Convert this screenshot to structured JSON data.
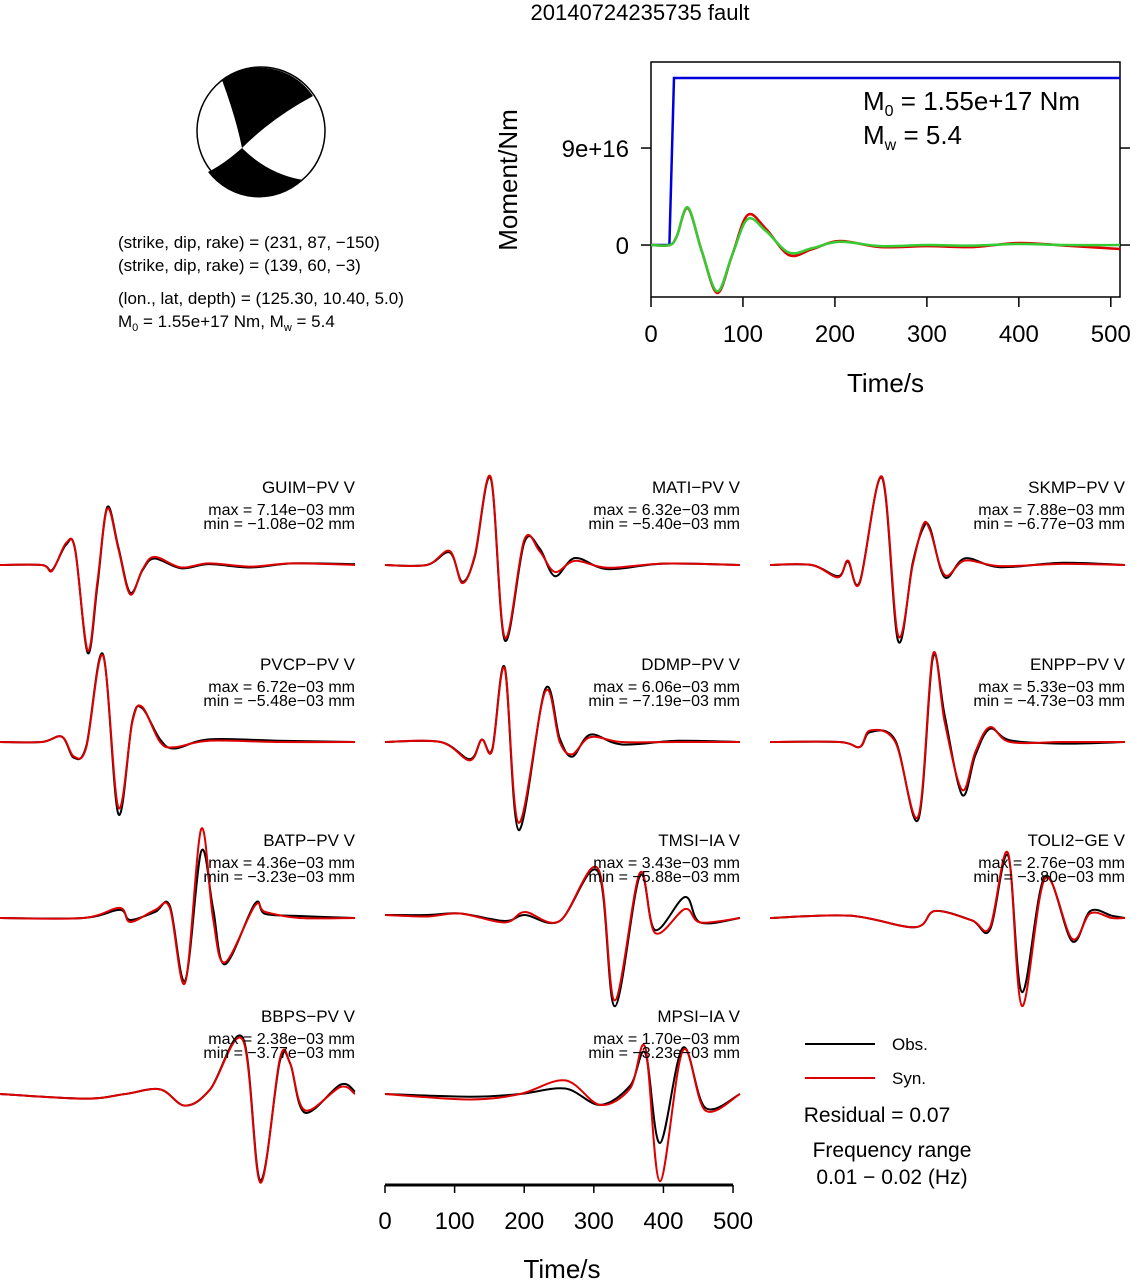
{
  "title": "20140724235735 fault",
  "mechanism": {
    "lines": [
      "(strike, dip, rake) = (231, 87, −150)",
      "(strike, dip, rake) = (139, 60, −3)",
      "(lon., lat, depth) = (125.30, 10.40, 5.0)"
    ],
    "moment": {
      "m0_symbol": "M",
      "m0_sub": "0",
      "m0_text": " = 1.55e+17 Nm, ",
      "mw_symbol": "M",
      "mw_sub": "w",
      "mw_text": " = 5.4"
    }
  },
  "chart_data": [
    {
      "type": "line",
      "ylabel": "Moment/Nm",
      "xlabel": "Time/s",
      "xlim": [
        0,
        510
      ],
      "ylim": [
        -4.82e+16,
        1.698e+17
      ],
      "xticks": [
        0,
        100,
        200,
        300,
        400,
        500
      ],
      "yticks": [
        0,
        {
          "value": 9e+16,
          "label": "9e+16"
        }
      ],
      "annotations": [
        {
          "symbol": "M",
          "sub": "0",
          "text": " = 1.55e+17 Nm"
        },
        {
          "symbol": "M",
          "sub": "w",
          "text": " = 5.4"
        }
      ],
      "series": [
        {
          "color": "#0000dd",
          "x": [
            0,
            20,
            25,
            510
          ],
          "values": [
            0,
            0,
            1.55e+17,
            1.55e+17
          ]
        },
        {
          "color": "#dd0000",
          "x": [
            0,
            20,
            28,
            40,
            55,
            72,
            88,
            105,
            125,
            150,
            175,
            205,
            250,
            300,
            350,
            400,
            450,
            510
          ],
          "values": [
            0,
            0,
            8000000000000000.0,
            3.43e+16,
            -5000000000000000.0,
            -4.45e+16,
            -1e+16,
            2.78e+16,
            1.5e+16,
            -9300000000000000.0,
            -4000000000000000.0,
            3700000000000000.0,
            -1900000000000000.0,
            -1000000000000000.0,
            -1900000000000000.0,
            1900000000000000.0,
            -500000000000000.0,
            -3700000000000000.0
          ]
        },
        {
          "color": "#33cc33",
          "x": [
            0,
            20,
            28,
            40,
            55,
            72,
            88,
            105,
            125,
            150,
            175,
            205,
            250,
            300,
            350,
            400,
            450,
            510
          ],
          "values": [
            0,
            0,
            8000000000000000.0,
            3.5e+16,
            -5000000000000000.0,
            -4.3e+16,
            -1e+16,
            2.4e+16,
            1.3e+16,
            -7000000000000000.0,
            -3000000000000000.0,
            3000000000000000.0,
            -1000000000000000.0,
            0,
            -500000000000000.0,
            1000000000000000.0,
            0,
            0
          ]
        }
      ]
    },
    {
      "type": "waveforms",
      "xlabel": "Time/s",
      "xlim": [
        0,
        510
      ],
      "xticks": [
        0,
        100,
        200,
        300,
        400,
        500
      ],
      "legend": {
        "obs": {
          "name": "Obs.",
          "color": "#000000"
        },
        "syn": {
          "name": "Syn.",
          "color": "#dd0000"
        }
      },
      "residual": "Residual = 0.07",
      "frequency_title": "Frequency range",
      "frequency_range": "0.01 − 0.02 (Hz)",
      "panels": [
        {
          "title": "GUIM−PV V",
          "max": {
            "value": 0.00714,
            "label": "max = 7.14e−03 mm"
          },
          "min": {
            "value": -0.0108,
            "label": "min = −1.08e−02 mm"
          },
          "x": [
            0,
            60,
            75,
            95,
            108,
            126,
            140,
            154,
            170,
            187,
            205,
            222,
            260,
            300,
            360,
            420,
            510
          ],
          "obs": [
            0,
            0,
            -0.0006,
            0.0025,
            0.0019,
            -0.0108,
            -0.0025,
            0.0071,
            0.0022,
            -0.0034,
            -0.0006,
            0.0008,
            -0.0004,
            0.0001,
            -0.0003,
            0.0002,
            0.0001
          ],
          "syn": [
            0,
            0,
            -0.0007,
            0.0027,
            0.0018,
            -0.0105,
            -0.002,
            0.0069,
            0.002,
            -0.0036,
            -0.0005,
            0.001,
            -0.0003,
            0.0002,
            -0.0002,
            0.0002,
            0
          ]
        },
        {
          "title": "MATI−PV V",
          "max": {
            "value": 0.00632,
            "label": "max = 6.32e−03 mm"
          },
          "min": {
            "value": -0.0054,
            "label": "min = −5.40e−03 mm"
          },
          "x": [
            0,
            60,
            93,
            111,
            129,
            152,
            172,
            200,
            222,
            244,
            273,
            320,
            400,
            510
          ],
          "obs": [
            0,
            0,
            0.0009,
            -0.0012,
            0.0006,
            0.0062,
            -0.0054,
            0.0016,
            0.0012,
            -0.0008,
            0.0005,
            -0.0003,
            0.0001,
            0
          ],
          "syn": [
            0,
            0,
            0.001,
            -0.0013,
            0.0007,
            0.0063,
            -0.0052,
            0.0018,
            0.001,
            -0.0005,
            0.0003,
            -0.0002,
            0.0001,
            0
          ]
        },
        {
          "title": "SKMP−PV V",
          "max": {
            "value": 0.00788,
            "label": "max = 7.88e−03 mm"
          },
          "min": {
            "value": -0.00677,
            "label": "min = −6.77e−03 mm"
          },
          "x": [
            0,
            60,
            98,
            112,
            129,
            161,
            184,
            205,
            220,
            230,
            251,
            280,
            330,
            420,
            510
          ],
          "obs": [
            0,
            0,
            -0.001,
            0.0003,
            -0.0015,
            0.0078,
            -0.0068,
            0.0002,
            0.0033,
            0.0033,
            -0.0011,
            0.0006,
            -0.0002,
            0.0002,
            0
          ],
          "syn": [
            0,
            0,
            -0.0011,
            0.0004,
            -0.0016,
            0.0079,
            -0.0063,
            0,
            0.0036,
            0.0031,
            -0.0009,
            0.0004,
            -0.0001,
            0.0001,
            0
          ]
        },
        {
          "title": "PVCP−PV V",
          "max": {
            "value": 0.00672,
            "label": "max = 6.72e−03 mm"
          },
          "min": {
            "value": -0.00548,
            "label": "min = −5.48e−03 mm"
          },
          "x": [
            0,
            60,
            89,
            106,
            124,
            148,
            170,
            190,
            204,
            230,
            251,
            300,
            400,
            510
          ],
          "obs": [
            0,
            0,
            0.0004,
            -0.0012,
            -0.0003,
            0.0067,
            -0.0055,
            0.0016,
            0.0026,
            0.0002,
            -0.0005,
            0.0002,
            0.0001,
            0
          ],
          "syn": [
            0,
            0,
            0.0004,
            -0.0011,
            -0.0004,
            0.0066,
            -0.005,
            0.0015,
            0.0027,
            0,
            -0.0004,
            0.0001,
            0,
            0
          ]
        },
        {
          "title": "DDMP−PV V",
          "max": {
            "value": 0.00606,
            "label": "max = 6.06e−03 mm"
          },
          "min": {
            "value": -0.00719,
            "label": "min = −7.19e−03 mm"
          },
          "x": [
            0,
            80,
            122,
            139,
            154,
            172,
            192,
            230,
            251,
            269,
            295,
            340,
            420,
            510
          ],
          "obs": [
            0,
            0,
            -0.0014,
            0.0002,
            -0.0006,
            0.0061,
            -0.0072,
            0.0043,
            0.0003,
            -0.0012,
            0.0006,
            -0.0002,
            0.0001,
            0
          ],
          "syn": [
            0,
            0,
            -0.0015,
            0.0002,
            -0.0007,
            0.006,
            -0.0066,
            0.0041,
            0,
            -0.001,
            0.0004,
            0,
            0,
            0
          ]
        },
        {
          "title": "ENPP−PV V",
          "max": {
            "value": 0.00533,
            "label": "max = 5.33e−03 mm"
          },
          "min": {
            "value": -0.00473,
            "label": "min = −4.73e−03 mm"
          },
          "x": [
            0,
            100,
            129,
            144,
            180,
            213,
            234,
            251,
            276,
            295,
            316,
            345,
            420,
            510
          ],
          "obs": [
            0,
            0,
            -0.0003,
            0.0006,
            0.0001,
            -0.0047,
            0.0051,
            0.0016,
            -0.0032,
            -0.0008,
            0.0008,
            0.0001,
            -0.0001,
            0
          ],
          "syn": [
            0,
            0,
            -0.0003,
            0.0007,
            0,
            -0.0045,
            0.0053,
            0.0012,
            -0.0029,
            -0.0006,
            0.0009,
            0,
            0,
            0
          ]
        },
        {
          "title": "BATP−PV V",
          "max": {
            "value": 0.00436,
            "label": "max = 4.36e−03 mm"
          },
          "min": {
            "value": -0.00323,
            "label": "min = −3.23e−03 mm"
          },
          "x": [
            0,
            120,
            172,
            187,
            223,
            244,
            266,
            289,
            306,
            323,
            366,
            381,
            430,
            510
          ],
          "obs": [
            0,
            0,
            0.0004,
            -0.0001,
            0.0003,
            0.0006,
            -0.0031,
            0.0033,
            0.0005,
            -0.0023,
            0.0007,
            0.0002,
            0.0001,
            0
          ],
          "syn": [
            0,
            0,
            0.0005,
            -0.0002,
            0.0004,
            0.0005,
            -0.0032,
            0.0044,
            0,
            -0.0022,
            0.0006,
            0.0003,
            0,
            0
          ]
        },
        {
          "title": "TMSI−IA V",
          "max": {
            "value": 0.00343,
            "label": "max = 3.43e−03 mm"
          },
          "min": {
            "value": -0.00588,
            "label": "min = −5.88e−03 mm"
          },
          "x": [
            0,
            60,
            108,
            172,
            201,
            251,
            306,
            330,
            366,
            388,
            431,
            453,
            510
          ],
          "obs": [
            0.0002,
            0.0002,
            0.0003,
            -0.0002,
            0.0002,
            -0.0002,
            0.0031,
            -0.0059,
            0.0028,
            -0.0008,
            0.0014,
            -0.0003,
            0
          ],
          "syn": [
            0.0002,
            0.0001,
            0.0003,
            -0.0003,
            0.0004,
            -0.0002,
            0.0033,
            -0.0055,
            0.003,
            -0.001,
            0.0006,
            -0.0003,
            0
          ]
        },
        {
          "title": "TOLI2−GE V",
          "max": {
            "value": 0.00276,
            "label": "max = 2.76e−03 mm"
          },
          "min": {
            "value": -0.0038,
            "label": "min = −3.80e−03 mm"
          },
          "x": [
            0,
            115,
            208,
            237,
            290,
            316,
            342,
            362,
            395,
            434,
            460,
            491,
            510
          ],
          "obs": [
            0,
            0.0001,
            -0.0004,
            0.0003,
            -0.0001,
            -0.0005,
            0.0027,
            -0.0032,
            0.0018,
            -0.001,
            0.0003,
            0.0001,
            0
          ],
          "syn": [
            0,
            0.0001,
            -0.0004,
            0.0003,
            -0.0001,
            -0.0004,
            0.0028,
            -0.0038,
            0.0017,
            -0.0009,
            0.0002,
            0,
            0
          ]
        },
        {
          "title": "BBPS−PV V",
          "max": {
            "value": 0.00238,
            "label": "max = 2.38e−03 mm"
          },
          "min": {
            "value": -0.00377,
            "label": "min = −3.77e−03 mm"
          },
          "x": [
            0,
            122,
            180,
            230,
            266,
            302,
            349,
            374,
            402,
            417,
            438,
            489,
            510
          ],
          "obs": [
            0,
            -0.0002,
            0,
            0.0002,
            -0.0005,
            0.0002,
            0.0024,
            -0.0037,
            0.0014,
            0.0013,
            -0.0008,
            0.0004,
            0.0001
          ],
          "syn": [
            0,
            -0.0002,
            0,
            0.0002,
            -0.0005,
            0.0002,
            0.0023,
            -0.0038,
            0.0015,
            0.0013,
            -0.0007,
            0.0003,
            0
          ]
        },
        {
          "title": "MPSI−IA V",
          "max": {
            "value": 0.0017,
            "label": "max = 1.70e−03 mm"
          },
          "min": {
            "value": -0.00323,
            "label": "min = −3.23e−03 mm"
          },
          "x": [
            0,
            122,
            194,
            259,
            309,
            352,
            374,
            395,
            428,
            460,
            510
          ],
          "obs": [
            0,
            -0.0001,
            0,
            0.0002,
            -0.0004,
            0.0003,
            0.0015,
            -0.0018,
            0.0017,
            -0.0005,
            0
          ],
          "syn": [
            0,
            -0.0002,
            0,
            0.0005,
            -0.0004,
            0.0002,
            0.0017,
            -0.0032,
            0.0016,
            -0.0006,
            0
          ]
        }
      ]
    }
  ]
}
